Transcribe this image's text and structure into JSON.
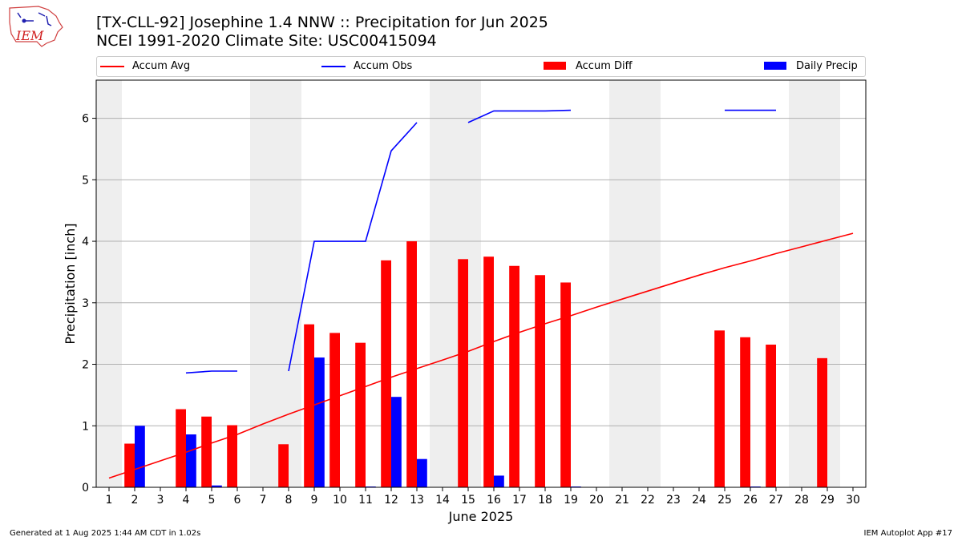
{
  "header": {
    "title_line1": "[TX-CLL-92] Josephine 1.4 NNW :: Precipitation for Jun 2025",
    "title_line2": "NCEI 1991-2020 Climate Site: USC00415094",
    "logo_text": "IEM"
  },
  "legend": {
    "items": [
      {
        "label": "Accum Avg",
        "color": "#ff0000",
        "kind": "line"
      },
      {
        "label": "Accum Obs",
        "color": "#0000ff",
        "kind": "line"
      },
      {
        "label": "Accum Diff",
        "color": "#ff0000",
        "kind": "patch"
      },
      {
        "label": "Daily Precip",
        "color": "#0000ff",
        "kind": "patch"
      }
    ]
  },
  "footer": {
    "generated": "Generated at 1 Aug 2025 1:44 AM CDT in 1.02s",
    "app": "IEM Autoplot App #17"
  },
  "chart_data": {
    "type": "bar",
    "xlabel": "June 2025",
    "ylabel": "Precipitation [inch]",
    "x": [
      1,
      2,
      3,
      4,
      5,
      6,
      7,
      8,
      9,
      10,
      11,
      12,
      13,
      14,
      15,
      16,
      17,
      18,
      19,
      20,
      21,
      22,
      23,
      24,
      25,
      26,
      27,
      28,
      29,
      30
    ],
    "xlim": [
      0.5,
      30.5
    ],
    "ylim": [
      0,
      6.62
    ],
    "yticks": [
      0,
      1,
      2,
      3,
      4,
      5,
      6
    ],
    "grid": "horizontal",
    "legend_position": "top",
    "weekend_shading": [
      [
        0.5,
        1.5
      ],
      [
        6.5,
        8.5
      ],
      [
        13.5,
        15.5
      ],
      [
        20.5,
        22.5
      ],
      [
        27.5,
        29.5
      ]
    ],
    "series": [
      {
        "name": "Accum Avg",
        "type": "line",
        "color": "#ff0000",
        "values": [
          0.15,
          0.29,
          0.43,
          0.57,
          0.72,
          0.86,
          1.03,
          1.19,
          1.34,
          1.49,
          1.64,
          1.79,
          1.93,
          2.07,
          2.21,
          2.37,
          2.52,
          2.66,
          2.79,
          2.93,
          3.06,
          3.19,
          3.32,
          3.45,
          3.57,
          3.68,
          3.8,
          3.91,
          4.02,
          4.13
        ]
      },
      {
        "name": "Accum Obs",
        "type": "line",
        "color": "#0000ff",
        "values": [
          null,
          null,
          null,
          1.86,
          1.89,
          1.89,
          null,
          1.89,
          4.0,
          4.0,
          4.0,
          5.47,
          5.93,
          null,
          5.93,
          6.12,
          6.12,
          6.12,
          6.13,
          null,
          null,
          null,
          null,
          null,
          6.13,
          6.13,
          6.13,
          null,
          null,
          null
        ]
      },
      {
        "name": "Accum Diff",
        "type": "bar",
        "color": "#ff0000",
        "values": [
          null,
          0.71,
          null,
          1.27,
          1.15,
          1.01,
          null,
          0.7,
          2.65,
          2.51,
          2.35,
          3.69,
          4.0,
          null,
          3.71,
          3.75,
          3.6,
          3.45,
          3.33,
          null,
          null,
          null,
          null,
          null,
          2.55,
          2.44,
          2.32,
          null,
          2.1,
          null
        ]
      },
      {
        "name": "Daily Precip",
        "type": "bar",
        "color": "#0000ff",
        "values": [
          null,
          1.0,
          null,
          0.86,
          0.03,
          null,
          null,
          null,
          2.11,
          null,
          0.01,
          1.47,
          0.46,
          null,
          null,
          0.19,
          null,
          null,
          0.01,
          null,
          null,
          null,
          null,
          null,
          null,
          0.01,
          null,
          null,
          null,
          null
        ]
      }
    ]
  }
}
